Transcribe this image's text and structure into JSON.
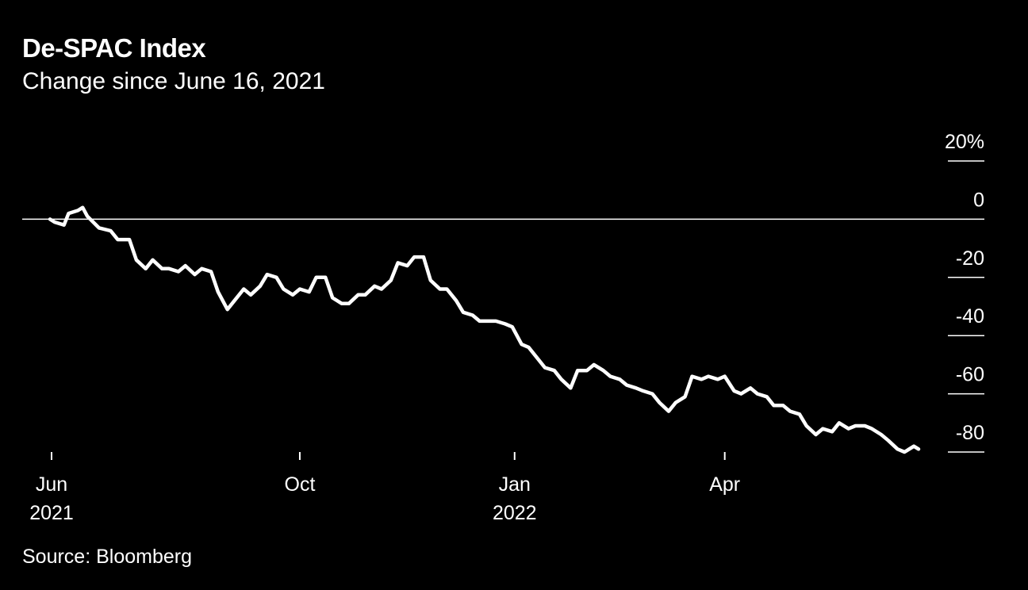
{
  "chart_data": {
    "type": "line",
    "title": "De-SPAC Index",
    "subtitle": "Change since June 16, 2021",
    "source": "Source: Bloomberg",
    "xlabel": "",
    "ylabel": "",
    "ylim": [
      -80,
      20
    ],
    "xlim": [
      "2021-06-16",
      "2022-06-23"
    ],
    "grid": false,
    "legend": "none",
    "line_color": "#ffffff",
    "y_ticks": [
      {
        "value": 20,
        "label": "20%"
      },
      {
        "value": 0,
        "label": "0"
      },
      {
        "value": -20,
        "label": "-20"
      },
      {
        "value": -40,
        "label": "-40"
      },
      {
        "value": -60,
        "label": "-60"
      },
      {
        "value": -80,
        "label": "-80"
      }
    ],
    "x_ticks": [
      {
        "date": "2021-06-01",
        "label": "Jun",
        "sublabel": "2021"
      },
      {
        "date": "2021-10-01",
        "label": "Oct",
        "sublabel": ""
      },
      {
        "date": "2022-01-01",
        "label": "Jan",
        "sublabel": "2022"
      },
      {
        "date": "2022-04-01",
        "label": "Apr",
        "sublabel": ""
      }
    ],
    "series": [
      {
        "points": [
          [
            "2021-06-16",
            0
          ],
          [
            "2021-06-18",
            -1
          ],
          [
            "2021-06-22",
            -2
          ],
          [
            "2021-06-24",
            2
          ],
          [
            "2021-06-28",
            3
          ],
          [
            "2021-06-30",
            4
          ],
          [
            "2021-07-02",
            1
          ],
          [
            "2021-07-07",
            -3
          ],
          [
            "2021-07-12",
            -4
          ],
          [
            "2021-07-15",
            -7
          ],
          [
            "2021-07-20",
            -7
          ],
          [
            "2021-07-23",
            -14
          ],
          [
            "2021-07-27",
            -17
          ],
          [
            "2021-07-30",
            -14
          ],
          [
            "2021-08-03",
            -17
          ],
          [
            "2021-08-06",
            -17
          ],
          [
            "2021-08-10",
            -18
          ],
          [
            "2021-08-13",
            -16
          ],
          [
            "2021-08-17",
            -19
          ],
          [
            "2021-08-20",
            -17
          ],
          [
            "2021-08-24",
            -18
          ],
          [
            "2021-08-27",
            -25
          ],
          [
            "2021-08-31",
            -31
          ],
          [
            "2021-09-03",
            -28
          ],
          [
            "2021-09-07",
            -24
          ],
          [
            "2021-09-10",
            -26
          ],
          [
            "2021-09-14",
            -23
          ],
          [
            "2021-09-17",
            -19
          ],
          [
            "2021-09-21",
            -20
          ],
          [
            "2021-09-24",
            -24
          ],
          [
            "2021-09-28",
            -26
          ],
          [
            "2021-10-01",
            -24
          ],
          [
            "2021-10-05",
            -25
          ],
          [
            "2021-10-08",
            -20
          ],
          [
            "2021-10-12",
            -20
          ],
          [
            "2021-10-15",
            -27
          ],
          [
            "2021-10-19",
            -29
          ],
          [
            "2021-10-22",
            -29
          ],
          [
            "2021-10-26",
            -26
          ],
          [
            "2021-10-29",
            -26
          ],
          [
            "2021-11-02",
            -23
          ],
          [
            "2021-11-05",
            -24
          ],
          [
            "2021-11-09",
            -21
          ],
          [
            "2021-11-12",
            -15
          ],
          [
            "2021-11-16",
            -16
          ],
          [
            "2021-11-19",
            -13
          ],
          [
            "2021-11-23",
            -13
          ],
          [
            "2021-11-26",
            -21
          ],
          [
            "2021-11-30",
            -24
          ],
          [
            "2021-12-03",
            -24
          ],
          [
            "2021-12-07",
            -28
          ],
          [
            "2021-12-10",
            -32
          ],
          [
            "2021-12-14",
            -33
          ],
          [
            "2021-12-17",
            -35
          ],
          [
            "2021-12-21",
            -35
          ],
          [
            "2021-12-24",
            -35
          ],
          [
            "2021-12-28",
            -36
          ],
          [
            "2021-12-31",
            -37
          ],
          [
            "2022-01-04",
            -43
          ],
          [
            "2022-01-07",
            -44
          ],
          [
            "2022-01-11",
            -48
          ],
          [
            "2022-01-14",
            -51
          ],
          [
            "2022-01-18",
            -52
          ],
          [
            "2022-01-21",
            -55
          ],
          [
            "2022-01-25",
            -58
          ],
          [
            "2022-01-28",
            -52
          ],
          [
            "2022-02-01",
            -52
          ],
          [
            "2022-02-04",
            -50
          ],
          [
            "2022-02-08",
            -52
          ],
          [
            "2022-02-11",
            -54
          ],
          [
            "2022-02-15",
            -55
          ],
          [
            "2022-02-18",
            -57
          ],
          [
            "2022-02-22",
            -58
          ],
          [
            "2022-02-25",
            -59
          ],
          [
            "2022-03-01",
            -60
          ],
          [
            "2022-03-04",
            -63
          ],
          [
            "2022-03-08",
            -66
          ],
          [
            "2022-03-11",
            -63
          ],
          [
            "2022-03-15",
            -61
          ],
          [
            "2022-03-18",
            -54
          ],
          [
            "2022-03-22",
            -55
          ],
          [
            "2022-03-25",
            -54
          ],
          [
            "2022-03-29",
            -55
          ],
          [
            "2022-04-01",
            -54
          ],
          [
            "2022-04-05",
            -59
          ],
          [
            "2022-04-08",
            -60
          ],
          [
            "2022-04-12",
            -58
          ],
          [
            "2022-04-15",
            -60
          ],
          [
            "2022-04-19",
            -61
          ],
          [
            "2022-04-22",
            -64
          ],
          [
            "2022-04-26",
            -64
          ],
          [
            "2022-04-29",
            -66
          ],
          [
            "2022-05-03",
            -67
          ],
          [
            "2022-05-06",
            -71
          ],
          [
            "2022-05-10",
            -74
          ],
          [
            "2022-05-13",
            -72
          ],
          [
            "2022-05-17",
            -73
          ],
          [
            "2022-05-20",
            -70
          ],
          [
            "2022-05-24",
            -72
          ],
          [
            "2022-05-27",
            -71
          ],
          [
            "2022-05-31",
            -71
          ],
          [
            "2022-06-03",
            -72
          ],
          [
            "2022-06-07",
            -74
          ],
          [
            "2022-06-10",
            -76
          ],
          [
            "2022-06-14",
            -79
          ],
          [
            "2022-06-17",
            -80
          ],
          [
            "2022-06-21",
            -78
          ],
          [
            "2022-06-23",
            -79
          ]
        ]
      }
    ]
  }
}
